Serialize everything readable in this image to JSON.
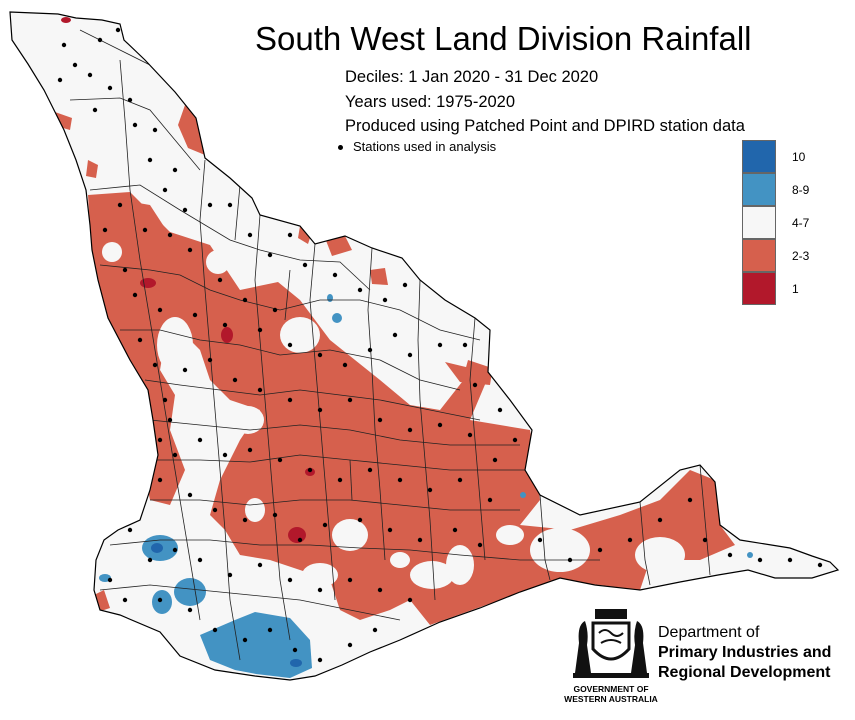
{
  "title": "South West Land Division Rainfall",
  "subtitle_lines": [
    "Deciles:  1 Jan 2020 - 31 Dec 2020",
    "Years used: 1975-2020",
    "Produced using Patched Point and DPIRD station data"
  ],
  "stations_label": "Stations used in analysis",
  "legend": [
    {
      "label": "10",
      "color": "#2166ac"
    },
    {
      "label": "8-9",
      "color": "#4393c3"
    },
    {
      "label": "4-7",
      "color": "#f7f7f7"
    },
    {
      "label": "2-3",
      "color": "#d6604d"
    },
    {
      "label": "1",
      "color": "#b2182b"
    }
  ],
  "department": {
    "line1": "Department of",
    "line2": "Primary Industries and",
    "line3": "Regional Development"
  },
  "government": {
    "line1": "GOVERNMENT OF",
    "line2": "WESTERN AUSTRALIA"
  }
}
